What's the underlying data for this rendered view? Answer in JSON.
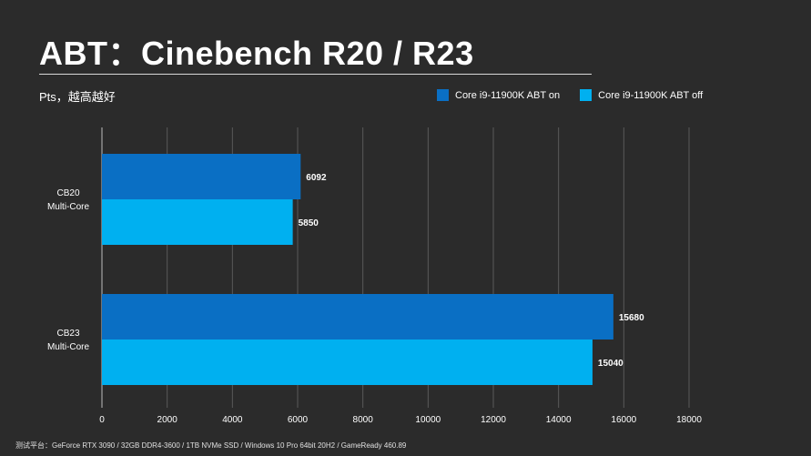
{
  "header": {
    "title": "ABT：Cinebench R20 / R23",
    "subtitle": "Pts，越高越好"
  },
  "footer": {
    "note": "测试平台：GeForce RTX 3090 / 32GB DDR4-3600 / 1TB NVMe SSD / Windows 10 Pro 64bit 20H2 / GameReady 460.89"
  },
  "chart_data": {
    "type": "bar",
    "orientation": "horizontal",
    "title": "ABT：Cinebench R20 / R23",
    "subtitle": "Pts，越高越好",
    "categories": [
      [
        "CB20",
        "Multi-Core"
      ],
      [
        "CB23",
        "Multi-Core"
      ]
    ],
    "series": [
      {
        "name": "Core i9-11900K ABT on",
        "color": "#0a6fc4",
        "values": [
          6092,
          15680
        ]
      },
      {
        "name": "Core i9-11900K ABT off",
        "color": "#00b0f0",
        "values": [
          5850,
          15040
        ]
      }
    ],
    "xlim": [
      0,
      18000
    ],
    "xticks": [
      0,
      2000,
      4000,
      6000,
      8000,
      10000,
      12000,
      14000,
      16000,
      18000
    ],
    "grid": true,
    "legend": "top-right"
  }
}
